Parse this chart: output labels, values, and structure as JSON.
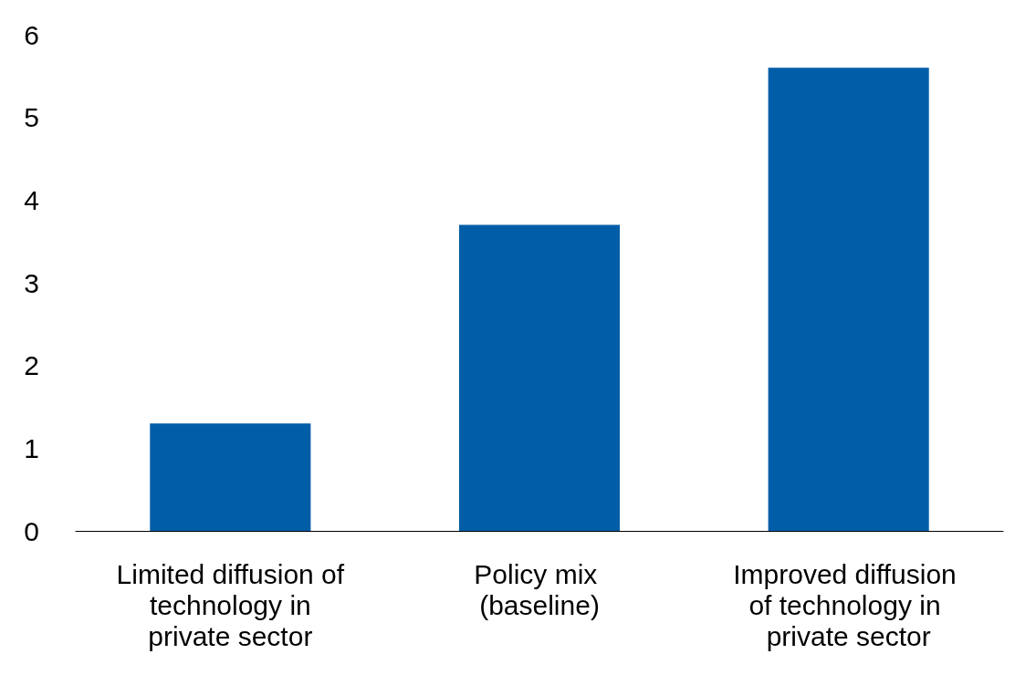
{
  "chart_data": {
    "type": "bar",
    "categories": [
      "Limited diffusion of technology in private sector",
      "Policy mix (baseline)",
      "Improved diffusion of technology in private sector"
    ],
    "values": [
      1.3,
      3.7,
      5.6
    ],
    "color": "#005ea8",
    "ylim": [
      0,
      6
    ],
    "yticks": [
      0,
      1,
      2,
      3,
      4,
      5,
      6
    ],
    "grid": false
  }
}
